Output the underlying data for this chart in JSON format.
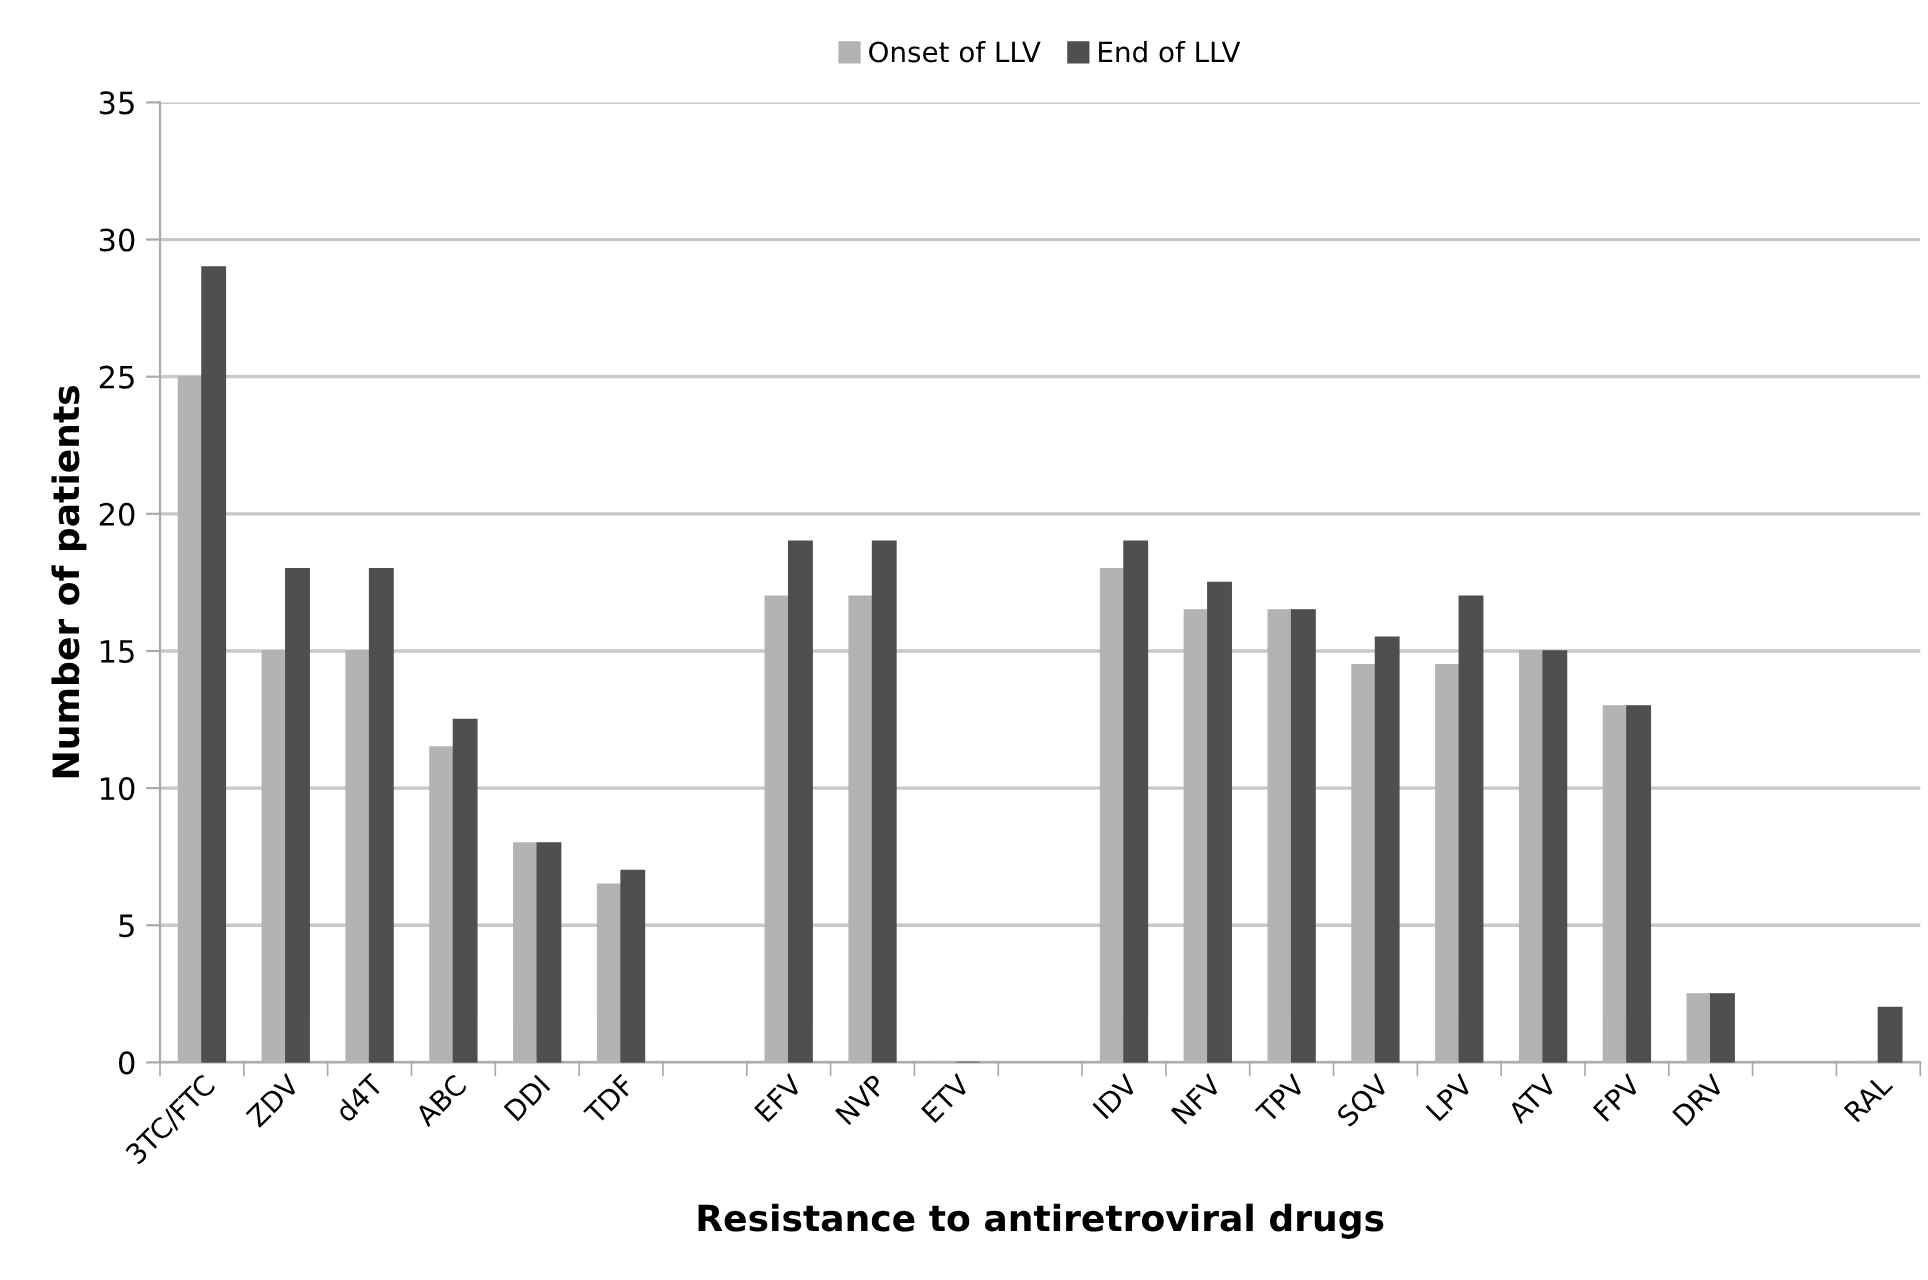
{
  "chart_data": {
    "type": "bar",
    "xlabel": "Resistance to antiretroviral drugs",
    "ylabel": "Number of patients",
    "categories": [
      "3TC/FTC",
      "ZDV",
      "d4T",
      "ABC",
      "DDI",
      "TDF",
      null,
      "EFV",
      "NVP",
      "ETV",
      null,
      "IDV",
      "NFV",
      "TPV",
      "SQV",
      "LPV",
      "ATV",
      "FPV",
      "DRV",
      null,
      "RAL"
    ],
    "series": [
      {
        "name": "Onset of LLV",
        "color": "#b3b3b3",
        "values": [
          25,
          15,
          15,
          11.5,
          8,
          6.5,
          null,
          17,
          17,
          0,
          null,
          18,
          16.5,
          16.5,
          14.5,
          14.5,
          15,
          13,
          2.5,
          null,
          0
        ]
      },
      {
        "name": "End of LLV",
        "color": "#4f4f4f",
        "values": [
          29,
          18,
          18,
          12.5,
          8,
          7,
          null,
          19,
          19,
          0,
          null,
          19,
          17.5,
          16.5,
          15.5,
          17,
          15,
          13,
          2.5,
          null,
          2
        ]
      }
    ],
    "ylim": [
      0,
      35
    ],
    "yticks": [
      0,
      5,
      10,
      15,
      20,
      25,
      30,
      35
    ],
    "grid": "y",
    "legend": "top"
  }
}
